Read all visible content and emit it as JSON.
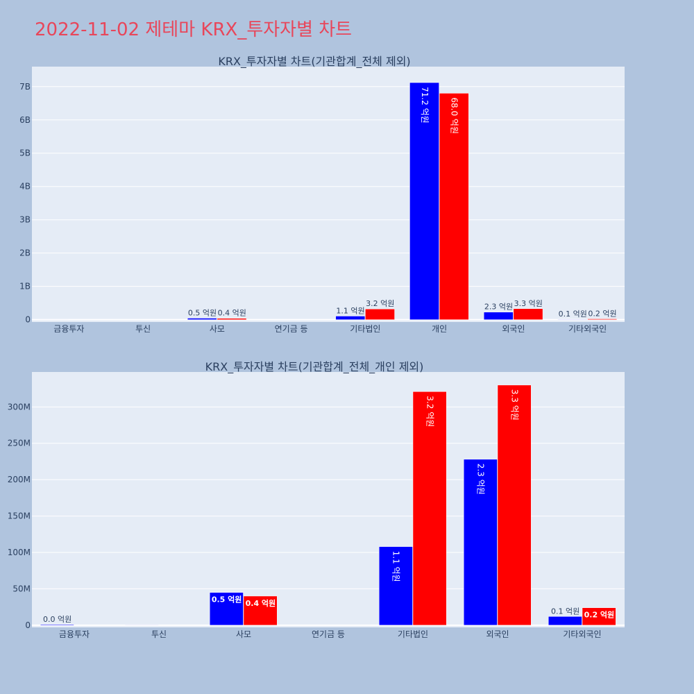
{
  "page": {
    "title": "2022-11-02 제테마 KRX_투자자별 차트"
  },
  "chart_data": [
    {
      "type": "bar",
      "title": "KRX_투자자별 차트(기관합계_전체 제외)",
      "categories": [
        "금융투자",
        "투신",
        "사모",
        "연기금 등",
        "기타법인",
        "개인",
        "외국인",
        "기타외국인"
      ],
      "series": [
        {
          "color": "#0000ff",
          "values": [
            1000000,
            500000,
            45000000,
            0,
            108000000,
            7120000000,
            228000000,
            12000000
          ],
          "labels": [
            "",
            "",
            "0.5 억원",
            "",
            "1.1 억원",
            "71.2 억원",
            "2.3 억원",
            "0.1 억원"
          ]
        },
        {
          "color": "#ff0000",
          "values": [
            0,
            0,
            40000000,
            0,
            321000000,
            6800000000,
            330000000,
            24000000
          ],
          "labels": [
            "",
            "",
            "0.4 억원",
            "",
            "3.2 억원",
            "68.0 억원",
            "3.3 억원",
            "0.2 억원"
          ]
        }
      ],
      "ylim": [
        -70000000,
        7600000000
      ],
      "yticks": [
        0,
        1000000000,
        2000000000,
        3000000000,
        4000000000,
        5000000000,
        6000000000,
        7000000000
      ],
      "ytick_labels": [
        "0",
        "1B",
        "2B",
        "3B",
        "4B",
        "5B",
        "6B",
        "7B"
      ],
      "grid": true
    },
    {
      "type": "bar",
      "title": "KRX_투자자별 차트(기관합계_전체_개인 제외)",
      "categories": [
        "금융투자",
        "투신",
        "사모",
        "연기금 등",
        "기타법인",
        "외국인",
        "기타외국인"
      ],
      "series": [
        {
          "color": "#0000ff",
          "values": [
            1000000,
            500000,
            45000000,
            0,
            108000000,
            228000000,
            12000000
          ],
          "labels": [
            "0.0 억원",
            "",
            "0.5 억원",
            "",
            "1.1 억원",
            "2.3 억원",
            "0.1 억원"
          ]
        },
        {
          "color": "#ff0000",
          "values": [
            0,
            0,
            40000000,
            0,
            321000000,
            330000000,
            24000000
          ],
          "labels": [
            "",
            "",
            "0.4 억원",
            "",
            "3.2 억원",
            "3.3 억원",
            "0.2 억원"
          ]
        }
      ],
      "ylim": [
        -3000000,
        348000000
      ],
      "yticks": [
        0,
        50000000,
        100000000,
        150000000,
        200000000,
        250000000,
        300000000
      ],
      "ytick_labels": [
        "0",
        "50M",
        "100M",
        "150M",
        "200M",
        "250M",
        "300M"
      ],
      "grid": true
    }
  ]
}
